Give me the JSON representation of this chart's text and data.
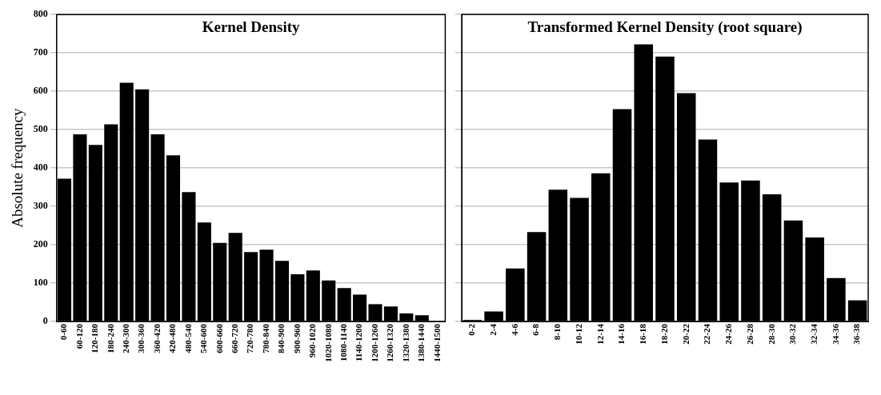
{
  "chart_data": [
    {
      "type": "bar",
      "title": "Kernel Density",
      "ylabel": "Absolute frequency",
      "categories": [
        "0-60",
        "60-120",
        "120-180",
        "180-240",
        "240-300",
        "300-360",
        "360-420",
        "420-480",
        "480-540",
        "540-600",
        "600-660",
        "660-720",
        "720-780",
        "780-840",
        "840-900",
        "900-960",
        "960-1020",
        "1020-1080",
        "1080-1140",
        "1140-1200",
        "1200-1260",
        "1260-1320",
        "1320-1380",
        "1380-1440",
        "1440-1500"
      ],
      "values": [
        372,
        488,
        460,
        514,
        622,
        605,
        488,
        433,
        337,
        258,
        205,
        231,
        181,
        187,
        158,
        123,
        133,
        107,
        87,
        70,
        45,
        39,
        21,
        16,
        null
      ],
      "color": "#000000",
      "ylim": [
        0,
        800
      ],
      "yticks": [
        0,
        100,
        200,
        300,
        400,
        500,
        600,
        700,
        800
      ],
      "grid": "y"
    },
    {
      "type": "bar",
      "title": "Transformed Kernel Density (root square)",
      "categories": [
        "0-2",
        "2-4",
        "4-6",
        "6-8",
        "8-10",
        "10-12",
        "12-14",
        "14-16",
        "16-18",
        "18-20",
        "20-22",
        "22-24",
        "24-26",
        "26-28",
        "28-30",
        "30-32",
        "32-34",
        "34-36",
        "36-38"
      ],
      "values": [
        4,
        26,
        138,
        233,
        343,
        322,
        386,
        553,
        722,
        690,
        595,
        474,
        362,
        367,
        331,
        263,
        219,
        113,
        55
      ],
      "color": "#000000",
      "ylim": [
        0,
        800
      ],
      "yticks": [
        0,
        100,
        200,
        300,
        400,
        500,
        600,
        700,
        800
      ],
      "grid": "y",
      "tick_labels": "x"
    }
  ]
}
